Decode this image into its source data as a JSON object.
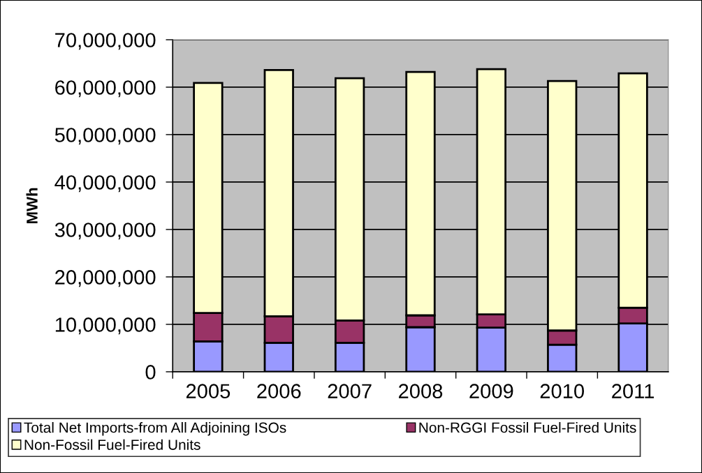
{
  "chart_data": {
    "type": "bar",
    "stacked": true,
    "ylabel": "MWh",
    "categories": [
      "2005",
      "2006",
      "2007",
      "2008",
      "2009",
      "2010",
      "2011"
    ],
    "series": [
      {
        "name": "Total Net Imports-from All Adjoining ISOs",
        "color": "#9999ff",
        "values": [
          6400000,
          6100000,
          6100000,
          9400000,
          9300000,
          5700000,
          10200000
        ]
      },
      {
        "name": "Non-RGGI Fossil Fuel-Fired Units",
        "color": "#993366",
        "values": [
          6000000,
          5600000,
          4700000,
          2500000,
          2800000,
          3000000,
          3300000
        ]
      },
      {
        "name": "Non-Fossil Fuel-Fired Units",
        "color": "#ffffcc",
        "values": [
          48500000,
          51900000,
          51100000,
          51300000,
          51700000,
          52600000,
          49400000
        ]
      }
    ],
    "ylim": [
      0,
      70000000
    ],
    "yticks": [
      0,
      {
        "value": 10000000,
        "label": "10,000,000"
      },
      {
        "value": 20000000,
        "label": "20,000,000"
      },
      {
        "value": 30000000,
        "label": "30,000,000"
      },
      {
        "value": 40000000,
        "label": "40,000,000"
      },
      {
        "value": 50000000,
        "label": "50,000,000"
      },
      {
        "value": 60000000,
        "label": "60,000,000"
      },
      {
        "value": 70000000,
        "label": "70,000,000"
      }
    ],
    "grid": "y",
    "legend": "bottom"
  }
}
